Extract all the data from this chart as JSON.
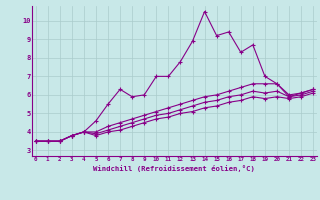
{
  "xlabel": "Windchill (Refroidissement éolien,°C)",
  "background_color": "#c8e8e8",
  "line_color": "#880088",
  "x": [
    0,
    1,
    2,
    3,
    4,
    5,
    6,
    7,
    8,
    9,
    10,
    11,
    12,
    13,
    14,
    15,
    16,
    17,
    18,
    19,
    20,
    21,
    22,
    23
  ],
  "line1": [
    3.5,
    3.5,
    3.5,
    3.8,
    4.0,
    4.6,
    5.5,
    6.3,
    5.9,
    6.0,
    7.0,
    7.0,
    7.8,
    8.9,
    10.5,
    9.2,
    9.4,
    8.3,
    8.7,
    7.0,
    6.6,
    5.9,
    6.1,
    6.3
  ],
  "line2": [
    3.5,
    3.5,
    3.5,
    3.8,
    4.0,
    4.0,
    4.3,
    4.5,
    4.7,
    4.9,
    5.1,
    5.3,
    5.5,
    5.7,
    5.9,
    6.0,
    6.2,
    6.4,
    6.6,
    6.6,
    6.6,
    6.0,
    6.1,
    6.3
  ],
  "line3": [
    3.5,
    3.5,
    3.5,
    3.8,
    4.0,
    3.9,
    4.1,
    4.3,
    4.5,
    4.7,
    4.9,
    5.0,
    5.2,
    5.4,
    5.6,
    5.7,
    5.9,
    6.0,
    6.2,
    6.1,
    6.2,
    5.9,
    6.0,
    6.2
  ],
  "line4": [
    3.5,
    3.5,
    3.5,
    3.8,
    4.0,
    3.8,
    4.0,
    4.1,
    4.3,
    4.5,
    4.7,
    4.8,
    5.0,
    5.1,
    5.3,
    5.4,
    5.6,
    5.7,
    5.9,
    5.8,
    5.9,
    5.8,
    5.9,
    6.1
  ],
  "yticks": [
    3,
    4,
    5,
    6,
    7,
    8,
    9,
    10
  ],
  "xticks": [
    0,
    1,
    2,
    3,
    4,
    5,
    6,
    7,
    8,
    9,
    10,
    11,
    12,
    13,
    14,
    15,
    16,
    17,
    18,
    19,
    20,
    21,
    22,
    23
  ],
  "ylim_bottom": 2.7,
  "ylim_top": 10.8,
  "xlim_left": -0.3,
  "xlim_right": 23.3
}
